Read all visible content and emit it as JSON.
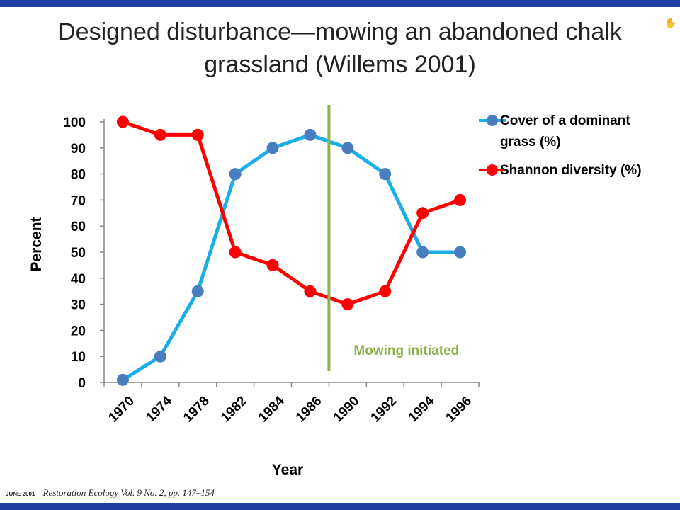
{
  "slide": {
    "title_line1": "Designed disturbance—mowing an abandoned chalk",
    "title_line2": "grassland (Willems 2001)",
    "cursor_icon": "hand-cursor-icon",
    "citation_date": "JUNE 2001",
    "citation_ref": "Restoration Ecology Vol. 9 No. 2, pp. 147–154"
  },
  "colors": {
    "frame": "#1f3fa5",
    "cover_line": "#1aaee8",
    "cover_marker": "#4a7cc0",
    "diversity": "#ff0000",
    "mowing": "#8db24a"
  },
  "chart_data": {
    "type": "line",
    "title": "",
    "xlabel": "Year",
    "ylabel": "Percent",
    "categories": [
      "1970",
      "1974",
      "1978",
      "1982",
      "1984",
      "1986",
      "1990",
      "1992",
      "1994",
      "1996"
    ],
    "ylim": [
      0,
      100
    ],
    "yticks": [
      "0",
      "10",
      "20",
      "30",
      "40",
      "50",
      "60",
      "70",
      "80",
      "90",
      "100"
    ],
    "grid": false,
    "legend_position": "right",
    "series": [
      {
        "name": "Cover of a dominant grass (%)",
        "legend_line1": "Cover of a dominant",
        "legend_line2": "grass (%)",
        "values": [
          1,
          10,
          35,
          80,
          90,
          95,
          90,
          80,
          50,
          50
        ]
      },
      {
        "name": "Shannon diversity (%)",
        "legend_line1": "Shannon diversity (%)",
        "values": [
          100,
          95,
          95,
          50,
          45,
          35,
          30,
          35,
          65,
          70
        ]
      }
    ],
    "annotation": {
      "label": "Mowing initiated",
      "between": [
        "1986",
        "1990"
      ]
    }
  }
}
